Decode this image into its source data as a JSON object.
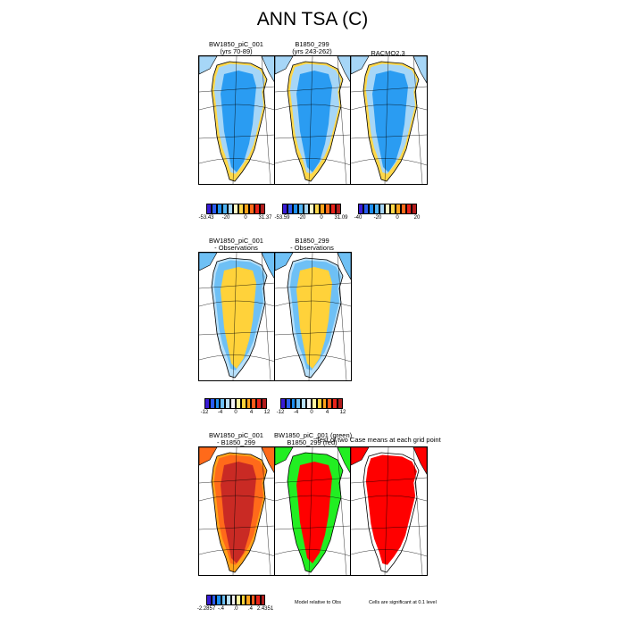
{
  "figure_title": "ANN TSA (C)",
  "rows": [
    {
      "panels": [
        {
          "title1": "BW1850_piC_001",
          "title2": "(yrs 70-89)",
          "kind": "abs"
        },
        {
          "title1": "B1850_299",
          "title2": "(yrs 243-262)",
          "kind": "abs"
        },
        {
          "title1": "RACMO2.3",
          "title2": "",
          "kind": "abs"
        }
      ],
      "colorbars": [
        {
          "ticks": [
            "-53.43",
            "-20",
            "0",
            "31.37"
          ],
          "palette": "abs"
        },
        {
          "ticks": [
            "-53.59",
            "-20",
            "0",
            "31.09"
          ],
          "palette": "abs"
        },
        {
          "ticks": [
            "-40",
            "-20",
            "0",
            "20"
          ],
          "palette": "abs"
        }
      ]
    },
    {
      "panels": [
        {
          "title1": "BW1850_piC_001",
          "title2": "- Observations",
          "kind": "bias"
        },
        {
          "title1": "B1850_299",
          "title2": "- Observations",
          "kind": "bias"
        }
      ],
      "colorbars": [
        {
          "ticks": [
            "-12",
            "-4",
            "0",
            "4",
            "12"
          ],
          "palette": "diff"
        },
        {
          "ticks": [
            "-12",
            "-4",
            "0",
            "4",
            "12"
          ],
          "palette": "diff"
        }
      ]
    },
    {
      "panels": [
        {
          "title1": "BW1850_piC_001",
          "title2": "- B1850_299",
          "kind": "diff"
        },
        {
          "title1": "BW1850_piC_001 (green)",
          "title2": "B1850_299 (red)",
          "kind": "sig"
        },
        {
          "title1": "",
          "title2": "",
          "kind": "sig2"
        }
      ],
      "overlay_title": "Test of two Case means at each grid point",
      "colorbars": [
        {
          "ticks": [
            "-2.2857",
            "-.4",
            ".0",
            ".4",
            "2.4351"
          ],
          "palette": "diff"
        }
      ],
      "notes": [
        "Model relative to Obs",
        "Cells are significant at 0.1 level"
      ]
    }
  ],
  "palettes": {
    "abs": [
      "#3a1cd6",
      "#2a5cf0",
      "#1e8ff0",
      "#50b4f5",
      "#a6d6f7",
      "#fff9c4",
      "#ffd84a",
      "#ffa31a",
      "#ff6a1a",
      "#e8231a",
      "#b11b1b"
    ],
    "diff": [
      "#3a1cd6",
      "#2a5cf0",
      "#1e8ff0",
      "#6ec0f5",
      "#b8e0fa",
      "#f5f5f5",
      "#fff3a0",
      "#ffd23a",
      "#ffa31a",
      "#ff5a1a",
      "#e8231a",
      "#b11b1b"
    ]
  },
  "chart_data": [
    {
      "type": "heatmap",
      "title": "BW1850_piC_001 (yrs 70-89)",
      "variable": "ANN TSA (C)",
      "colorbar_range": [
        -53.43,
        31.37
      ]
    },
    {
      "type": "heatmap",
      "title": "B1850_299 (yrs 243-262)",
      "variable": "ANN TSA (C)",
      "colorbar_range": [
        -53.59,
        31.09
      ]
    },
    {
      "type": "heatmap",
      "title": "RACMO2.3",
      "variable": "ANN TSA (C)",
      "colorbar_ticks": [
        -40,
        -20,
        0,
        20
      ]
    },
    {
      "type": "heatmap",
      "title": "BW1850_piC_001 - Observations",
      "colorbar_ticks": [
        -12,
        -4,
        0,
        4,
        12
      ]
    },
    {
      "type": "heatmap",
      "title": "B1850_299 - Observations",
      "colorbar_ticks": [
        -12,
        -4,
        0,
        4,
        12
      ]
    },
    {
      "type": "heatmap",
      "title": "BW1850_piC_001 - B1850_299",
      "colorbar_range": [
        -2.2857,
        2.4351
      ]
    },
    {
      "type": "heatmap",
      "title": "Test of two Case means at each grid point",
      "series": [
        {
          "name": "BW1850_piC_001"
        },
        {
          "name": "B1850_299"
        }
      ],
      "note": "Cells are significant at 0.1 level"
    }
  ]
}
